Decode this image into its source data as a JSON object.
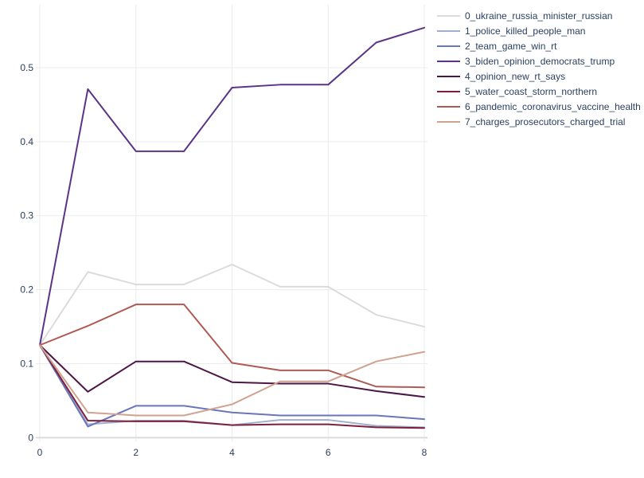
{
  "chart_data": {
    "type": "line",
    "title": "",
    "xlabel": "",
    "ylabel": "",
    "xlim": [
      0,
      8
    ],
    "ylim": [
      -0.005,
      0.585
    ],
    "grid": true,
    "legend_position": "top-right",
    "x": [
      0,
      1,
      2,
      3,
      4,
      5,
      6,
      7,
      8
    ],
    "x_ticks": [
      0,
      2,
      4,
      6,
      8
    ],
    "x_tick_labels": [
      "0",
      "2",
      "4",
      "6",
      "8"
    ],
    "y_ticks": [
      0,
      0.1,
      0.2,
      0.3,
      0.4,
      0.5
    ],
    "y_tick_labels": [
      "0",
      "0.1",
      "0.2",
      "0.3",
      "0.4",
      "0.5"
    ],
    "series": [
      {
        "name": "0_ukraine_russia_minister_russian",
        "color": "#dddadb",
        "values": [
          0.125,
          0.224,
          0.207,
          0.207,
          0.234,
          0.204,
          0.204,
          0.166,
          0.15
        ]
      },
      {
        "name": "1_police_killed_people_man",
        "color": "#9db1cf",
        "values": [
          0.125,
          0.018,
          0.023,
          0.023,
          0.017,
          0.024,
          0.024,
          0.016,
          0.014
        ]
      },
      {
        "name": "2_team_game_win_rt",
        "color": "#6a76b8",
        "values": [
          0.125,
          0.015,
          0.043,
          0.043,
          0.034,
          0.03,
          0.03,
          0.03,
          0.025
        ]
      },
      {
        "name": "3_biden_opinion_democrats_trump",
        "color": "#5b3488",
        "values": [
          0.125,
          0.471,
          0.387,
          0.387,
          0.473,
          0.477,
          0.477,
          0.534,
          0.554
        ]
      },
      {
        "name": "4_opinion_new_rt_says",
        "color": "#4d1646",
        "values": [
          0.125,
          0.062,
          0.103,
          0.103,
          0.075,
          0.073,
          0.073,
          0.063,
          0.055
        ]
      },
      {
        "name": "5_water_coast_storm_northern",
        "color": "#7e1f3f",
        "values": [
          0.125,
          0.023,
          0.022,
          0.022,
          0.017,
          0.018,
          0.018,
          0.014,
          0.013
        ]
      },
      {
        "name": "6_pandemic_coronavirus_vaccine_health",
        "color": "#b05a55",
        "values": [
          0.125,
          0.151,
          0.18,
          0.18,
          0.101,
          0.091,
          0.091,
          0.069,
          0.068
        ]
      },
      {
        "name": "7_charges_prosecutors_charged_trial",
        "color": "#cfa291",
        "values": [
          0.125,
          0.034,
          0.03,
          0.03,
          0.045,
          0.076,
          0.076,
          0.103,
          0.116
        ]
      }
    ]
  }
}
